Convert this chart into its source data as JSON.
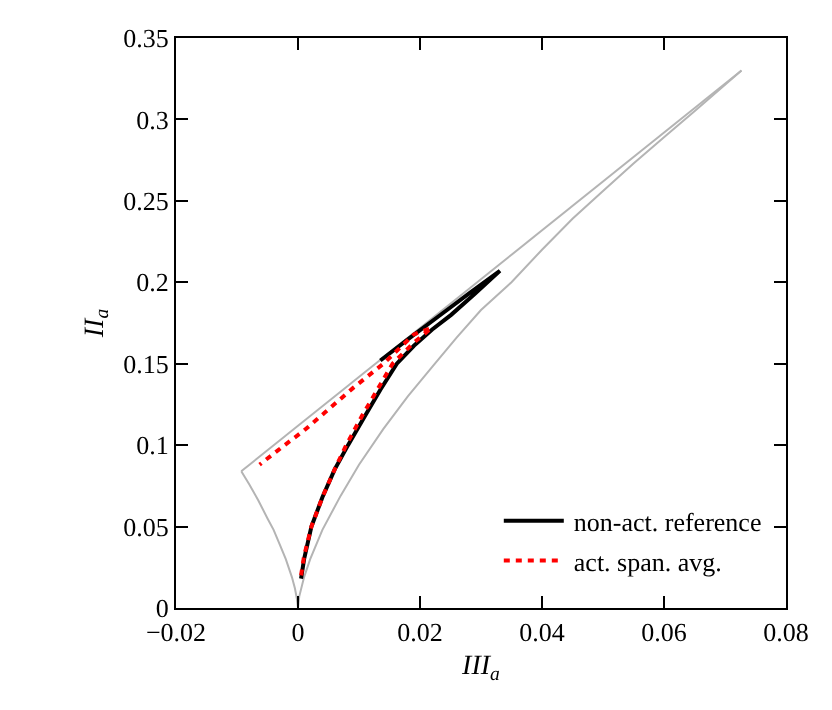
{
  "chart_data": {
    "type": "line",
    "xlabel": "III$_{a}$",
    "ylabel": "II$_{a}$",
    "xlim": [
      -0.02,
      0.08
    ],
    "xticks": [
      {
        "value": -0.02,
        "label": "−0.02"
      },
      0,
      0.02,
      0.04,
      0.06,
      0.08
    ],
    "ylim": [
      0,
      0.35
    ],
    "yticks": [
      0,
      0.05,
      0.1,
      0.15,
      0.2,
      0.25,
      0.3,
      0.35
    ],
    "legend": "bottom right",
    "marker": "none",
    "series": [
      {
        "color": "#b4b4b4",
        "line_style": "solid",
        "x": [
          -0.0093,
          0.0727
        ],
        "values": [
          0.084,
          0.33
        ]
      },
      {
        "color": "#b4b4b4",
        "line_style": "solid",
        "x": [
          0,
          0.0002,
          0.001,
          0.002,
          0.004,
          0.007,
          0.01,
          0.014,
          0.018,
          0.022,
          0.026,
          0.03,
          0.035,
          0.04,
          0.045,
          0.05,
          0.055,
          0.06,
          0.065,
          0.0727
        ],
        "values": [
          0,
          0.007,
          0.019,
          0.03,
          0.048,
          0.069,
          0.088,
          0.11,
          0.13,
          0.148,
          0.166,
          0.183,
          0.2,
          0.22,
          0.239,
          0.256,
          0.273,
          0.289,
          0.305,
          0.33
        ]
      },
      {
        "color": "#b4b4b4",
        "line_style": "solid",
        "x": [
          0,
          -0.0002,
          -0.0005,
          -0.001,
          -0.002,
          -0.003,
          -0.004,
          -0.005,
          -0.0065,
          -0.008,
          -0.0093
        ],
        "values": [
          0,
          0.006,
          0.012,
          0.019,
          0.03,
          0.039,
          0.048,
          0.055,
          0.066,
          0.076,
          0.084
        ]
      },
      {
        "name": "non-act. reference",
        "color": "#000000",
        "line_style": "solid",
        "x": [
          0.0005,
          0.001,
          0.0022,
          0.004,
          0.006,
          0.0082,
          0.011,
          0.0135,
          0.0162,
          0.019,
          0.022,
          0.0251,
          0.029,
          0.0331,
          0.028,
          0.023,
          0.018,
          0.0135
        ],
        "values": [
          0.018,
          0.03,
          0.05,
          0.068,
          0.085,
          0.1,
          0.118,
          0.134,
          0.15,
          0.161,
          0.171,
          0.18,
          0.193,
          0.207,
          0.193,
          0.179,
          0.165,
          0.152
        ]
      },
      {
        "name": "act. span. avg.",
        "color": "#ff0000",
        "line_style": "dotted",
        "x": [
          0.0005,
          0.001,
          0.0022,
          0.004,
          0.006,
          0.0079,
          0.0105,
          0.013,
          0.0155,
          0.019,
          0.0219,
          0.019,
          0.014,
          0.009,
          0.0044,
          0.001,
          -0.0022,
          -0.0063
        ],
        "values": [
          0.02,
          0.032,
          0.05,
          0.068,
          0.085,
          0.1,
          0.118,
          0.134,
          0.15,
          0.163,
          0.172,
          0.168,
          0.15,
          0.135,
          0.12,
          0.109,
          0.1,
          0.088
        ]
      }
    ]
  }
}
